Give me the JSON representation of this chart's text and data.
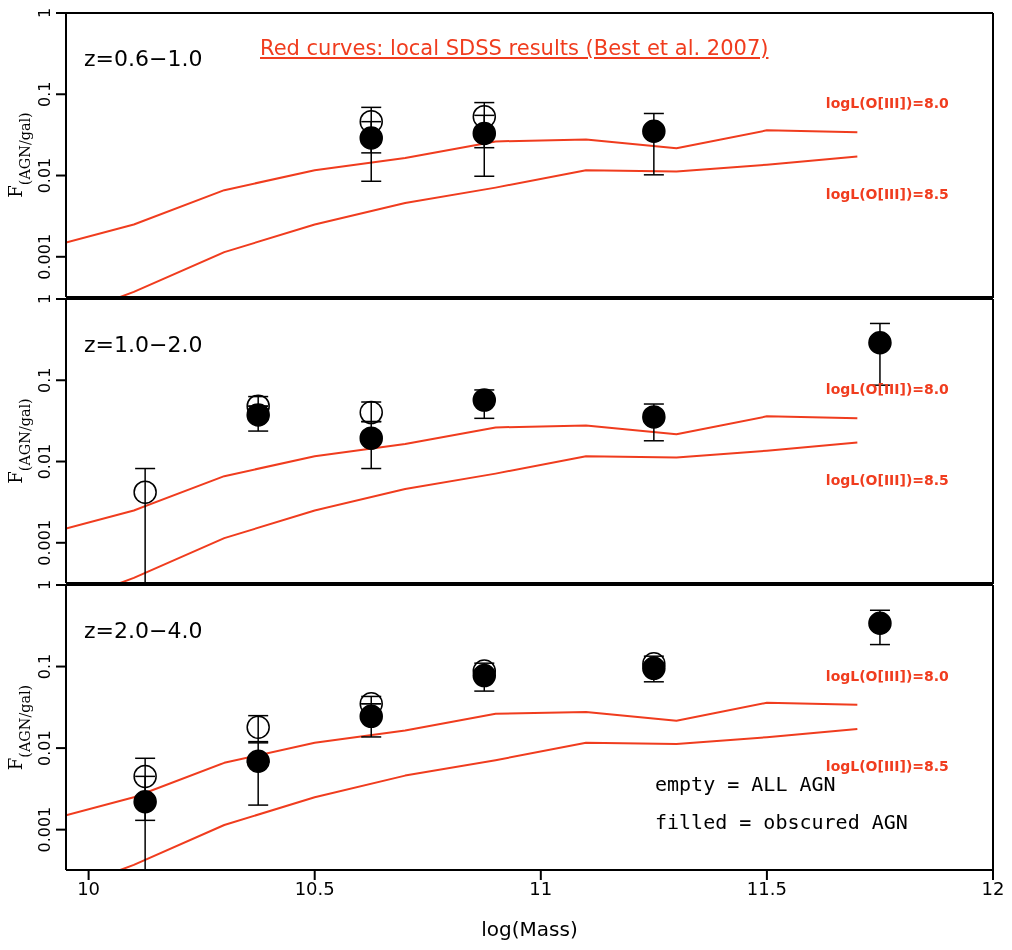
{
  "chart_data": [
    {
      "type": "scatter",
      "title": "z=0.6−1.0",
      "ylabel": "F$_{(AGN/gal)}$",
      "xlim": [
        9.95,
        12
      ],
      "xticks": [
        10,
        10.5,
        11,
        11.5,
        12
      ],
      "ylim": [
        0.00032,
        1
      ],
      "yticks": [
        0.001,
        0.01,
        0.1,
        1
      ],
      "log": "y",
      "marker": "circle",
      "tick_labels": "y",
      "annotations": [
        "Red curves: local SDSS results (Best et al. 2007)"
      ],
      "series": [
        {
          "type": "line",
          "marker": "none",
          "name": "logL(O[III])=8.0",
          "color": "#f03c1e",
          "x": [
            9.95,
            10.1,
            10.3,
            10.5,
            10.7,
            10.9,
            11.1,
            11.3,
            11.5,
            11.7
          ],
          "values": [
            0.0015,
            0.0025,
            0.0066,
            0.0116,
            0.0164,
            0.0263,
            0.0278,
            0.0216,
            0.036,
            0.034
          ]
        },
        {
          "type": "line",
          "marker": "none",
          "name": "logL(O[III])=8.5",
          "color": "#f03c1e",
          "x": [
            10.07,
            10.1,
            10.3,
            10.5,
            10.7,
            10.9,
            11.1,
            11.3,
            11.5,
            11.7
          ],
          "values": [
            0.00032,
            0.00037,
            0.00114,
            0.0025,
            0.0046,
            0.0071,
            0.0116,
            0.0112,
            0.0136,
            0.0171
          ]
        },
        {
          "color": "#000000",
          "x": [
            10.625,
            10.875
          ],
          "values": [
            0.046,
            0.053
          ],
          "errors": [
            [
              0.019,
              0.069
            ],
            [
              0.022,
              0.079
            ]
          ]
        },
        {
          "color": "#000000",
          "x": [
            10.625,
            10.875,
            11.25
          ],
          "values": [
            0.029,
            0.033,
            0.035
          ],
          "errors": [
            [
              0.0085,
              0.046
            ],
            [
              0.0098,
              0.055
            ],
            [
              0.0102,
              0.058
            ]
          ]
        }
      ]
    },
    {
      "type": "scatter",
      "title": "z=1.0−2.0",
      "ylabel": "F$_{(AGN/gal)}$",
      "xlim": [
        9.95,
        12
      ],
      "xticks": [
        10,
        10.5,
        11,
        11.5,
        12
      ],
      "ylim": [
        0.00032,
        1
      ],
      "yticks": [
        0.001,
        0.01,
        0.1,
        1
      ],
      "log": "y",
      "marker": "circle",
      "tick_labels": "y",
      "series": [
        {
          "type": "line",
          "marker": "none",
          "name": "logL(O[III])=8.0",
          "color": "#f03c1e",
          "x": [
            9.95,
            10.1,
            10.3,
            10.5,
            10.7,
            10.9,
            11.1,
            11.3,
            11.5,
            11.7
          ],
          "values": [
            0.0015,
            0.0025,
            0.0066,
            0.0116,
            0.0164,
            0.0263,
            0.0278,
            0.0216,
            0.036,
            0.034
          ]
        },
        {
          "type": "line",
          "marker": "none",
          "name": "logL(O[III])=8.5",
          "color": "#f03c1e",
          "x": [
            10.07,
            10.1,
            10.3,
            10.5,
            10.7,
            10.9,
            11.1,
            11.3,
            11.5,
            11.7
          ],
          "values": [
            0.00032,
            0.00037,
            0.00114,
            0.0025,
            0.0046,
            0.0071,
            0.0116,
            0.0112,
            0.0136,
            0.0171
          ]
        },
        {
          "color": "#000000",
          "x": [
            10.125,
            10.375,
            10.625
          ],
          "values": [
            0.0042,
            0.048,
            0.04
          ],
          "errors": [
            [
              0.00032,
              0.0082
            ],
            [
              0.048,
              0.063
            ],
            [
              0.031,
              0.054
            ]
          ]
        },
        {
          "color": "#000000",
          "x": [
            10.375,
            10.625,
            10.875,
            11.25,
            11.75
          ],
          "values": [
            0.0375,
            0.0194,
            0.057,
            0.0354,
            0.29
          ],
          "errors": [
            [
              0.0237,
              0.048
            ],
            [
              0.0082,
              0.031
            ],
            [
              0.034,
              0.076
            ],
            [
              0.018,
              0.051
            ],
            [
              0.087,
              0.5
            ]
          ]
        }
      ]
    },
    {
      "type": "scatter",
      "title": "z=2.0−4.0",
      "xlabel": "log(Mass)",
      "ylabel": "F$_{(AGN/gal)}$",
      "xlim": [
        9.95,
        12
      ],
      "xticks": [
        10,
        10.5,
        11,
        11.5,
        12
      ],
      "ylim": [
        0.00032,
        1
      ],
      "yticks": [
        0.001,
        0.01,
        0.1,
        1
      ],
      "log": "y",
      "marker": "circle",
      "annotations": [
        "empty = ALL AGN",
        "filled = obscured AGN"
      ],
      "series": [
        {
          "type": "line",
          "marker": "none",
          "name": "logL(O[III])=8.0",
          "color": "#f03c1e",
          "x": [
            9.95,
            10.1,
            10.3,
            10.5,
            10.7,
            10.9,
            11.1,
            11.3,
            11.5,
            11.7
          ],
          "values": [
            0.0015,
            0.0025,
            0.0066,
            0.0116,
            0.0164,
            0.0263,
            0.0278,
            0.0216,
            0.036,
            0.034
          ]
        },
        {
          "type": "line",
          "marker": "none",
          "name": "logL(O[III])=8.5",
          "color": "#f03c1e",
          "x": [
            10.07,
            10.1,
            10.3,
            10.5,
            10.7,
            10.9,
            11.1,
            11.3,
            11.5,
            11.7
          ],
          "values": [
            0.00032,
            0.00037,
            0.00114,
            0.0025,
            0.0046,
            0.0071,
            0.0116,
            0.0112,
            0.0136,
            0.0171
          ]
        },
        {
          "color": "#000000",
          "x": [
            10.125,
            10.375,
            10.625,
            10.875,
            11.25
          ],
          "values": [
            0.0045,
            0.018,
            0.035,
            0.088,
            0.108
          ],
          "errors": [
            [
              0.0013,
              0.0075
            ],
            [
              0.012,
              0.025
            ],
            [
              0.035,
              0.043
            ],
            [
              0.088,
              0.11
            ],
            [
              0.108,
              0.134
            ]
          ]
        },
        {
          "color": "#000000",
          "x": [
            10.125,
            10.375,
            10.625,
            10.875,
            11.25,
            11.75
          ],
          "values": [
            0.0022,
            0.0069,
            0.0245,
            0.0775,
            0.095,
            0.34
          ],
          "errors": [
            [
              0.00032,
              0.0045
            ],
            [
              0.002,
              0.0116
            ],
            [
              0.0137,
              0.035
            ],
            [
              0.05,
              0.0775
            ],
            [
              0.065,
              0.095
            ],
            [
              0.186,
              0.49
            ]
          ]
        }
      ]
    }
  ]
}
